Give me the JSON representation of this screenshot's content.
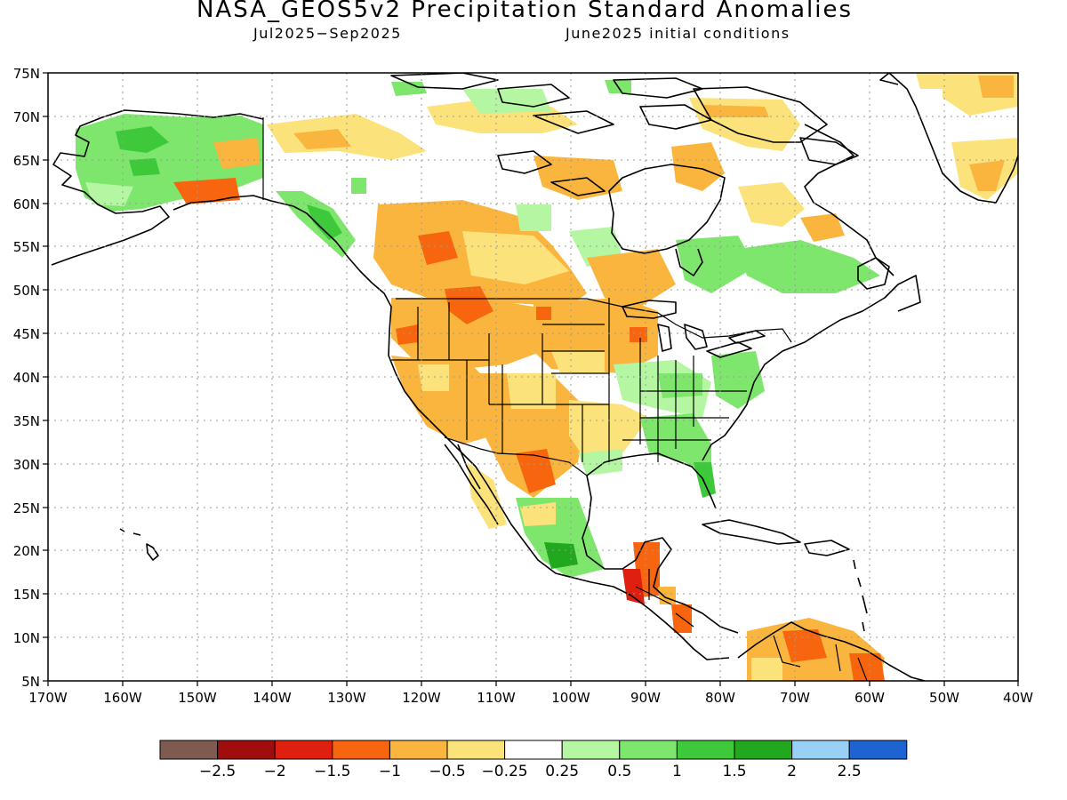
{
  "title": "NASA_GEOS5v2 Precipitation Standard Anomalies",
  "subtitle_left": "Jul2025−Sep2025",
  "subtitle_right": "June2025 initial conditions",
  "lat_labels": [
    "75N",
    "70N",
    "65N",
    "60N",
    "55N",
    "50N",
    "45N",
    "40N",
    "35N",
    "30N",
    "25N",
    "20N",
    "15N",
    "10N",
    "5N"
  ],
  "lon_labels": [
    "170W",
    "160W",
    "150W",
    "140W",
    "130W",
    "120W",
    "110W",
    "100W",
    "90W",
    "80W",
    "70W",
    "60W",
    "50W",
    "40W"
  ],
  "map_extent": {
    "lon": [
      -170,
      -40
    ],
    "lat": [
      5,
      75
    ]
  },
  "legend": {
    "labels": [
      "−2.5",
      "−2",
      "−1.5",
      "−1",
      "−0.5",
      "−0.25",
      "0.25",
      "0.5",
      "1",
      "1.5",
      "2",
      "2.5"
    ],
    "colors": [
      "#7f5a4f",
      "#a00d0d",
      "#e0200e",
      "#f7650f",
      "#f9b53e",
      "#fbe27a",
      "#ffffff",
      "#b4f6a2",
      "#7ee66c",
      "#3dc93a",
      "#22a81f",
      "#98d1f5",
      "#1d64d2"
    ]
  },
  "anomaly_colors": {
    "dry_-1.5": "#e0200e",
    "dry_-1": "#f7650f",
    "dry_-0.5": "#f9b53e",
    "dry_-0.25": "#fbe27a",
    "wet_0.25": "#b4f6a2",
    "wet_0.5": "#7ee66c",
    "wet_1": "#3dc93a",
    "wet_1.5": "#22a81f"
  }
}
